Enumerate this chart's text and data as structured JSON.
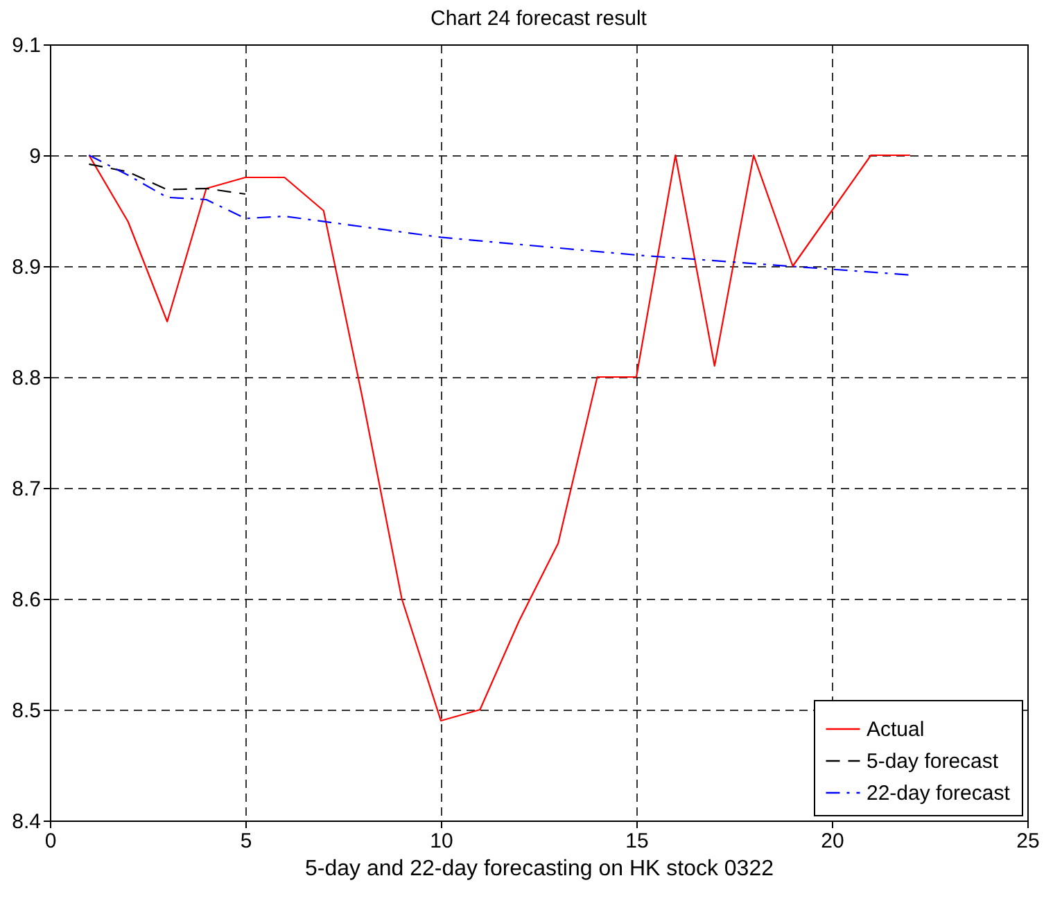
{
  "chart_data": {
    "type": "line",
    "title": "Chart 24 forecast result",
    "xlabel": "5-day and 22-day forecasting on HK stock 0322",
    "series": [
      {
        "name": "Actual",
        "color": "#ff0000",
        "line_style": "solid",
        "x": [
          1,
          2,
          3,
          4,
          5,
          6,
          7,
          8,
          9,
          10,
          11,
          12,
          13,
          14,
          15,
          16,
          17,
          18,
          19,
          20,
          21,
          22
        ],
        "values": [
          9.0,
          8.94,
          8.85,
          8.97,
          8.98,
          8.98,
          8.95,
          8.78,
          8.6,
          8.49,
          8.5,
          8.58,
          8.65,
          8.8,
          8.8,
          9.0,
          8.81,
          9.0,
          8.9,
          8.95,
          9.0,
          9.0
        ]
      },
      {
        "name": "5-day forecast",
        "color": "#000000",
        "line_style": "dashed",
        "x": [
          1,
          2,
          3,
          4,
          5
        ],
        "values": [
          8.992,
          8.985,
          8.969,
          8.97,
          8.965
        ]
      },
      {
        "name": "22-day forecast",
        "color": "#0000ff",
        "line_style": "dashdot",
        "x": [
          1,
          2,
          3,
          4,
          5,
          6,
          10,
          15,
          22
        ],
        "values": [
          9.0,
          8.982,
          8.962,
          8.96,
          8.943,
          8.945,
          8.926,
          8.91,
          8.892
        ]
      }
    ],
    "xlim": [
      0,
      25
    ],
    "xticks": [
      0,
      5,
      10,
      15,
      20,
      25
    ],
    "ylim": [
      8.4,
      9.1
    ],
    "yticks": [
      8.4,
      8.5,
      8.6,
      8.7,
      8.8,
      8.9,
      9.0,
      9.1
    ],
    "grid": true,
    "legend": "bottom right",
    "marker": "none"
  }
}
